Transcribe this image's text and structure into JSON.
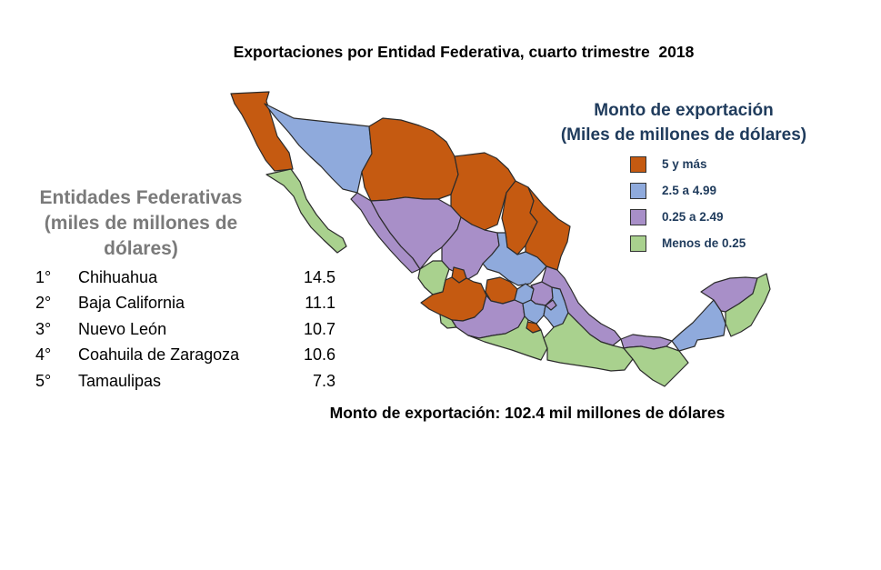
{
  "title": "Exportaciones por Entidad Federativa, cuarto trimestre  2018",
  "legend": {
    "title_line1": "Monto de exportación",
    "title_line2": "(Miles de millones de dólares)",
    "items": [
      {
        "label": "5 y más",
        "color": "#c55a11"
      },
      {
        "label": "2.5 a 4.99",
        "color": "#8faadc"
      },
      {
        "label": "0.25 a 2.49",
        "color": "#a88fc8"
      },
      {
        "label": "Menos de 0.25",
        "color": "#a9d18e"
      }
    ]
  },
  "ranking": {
    "title_line1": "Entidades Federativas",
    "title_line2": "(miles de millones de",
    "title_line3": "dólares)",
    "rows": [
      {
        "rank": "1°",
        "name": "Chihuahua",
        "value": "14.5"
      },
      {
        "rank": "2°",
        "name": "Baja California",
        "value": "11.1"
      },
      {
        "rank": "3°",
        "name": "Nuevo León",
        "value": "10.7"
      },
      {
        "rank": "4°",
        "name": "Coahuila de Zaragoza",
        "value": "10.6"
      },
      {
        "rank": "5°",
        "name": "Tamaulipas",
        "value": "7.3"
      }
    ]
  },
  "total_label": "Monto de exportación: 102.4 mil millones de dólares",
  "map_regions": [
    {
      "id": "baja-california",
      "color": "#c55a11"
    },
    {
      "id": "baja-california-sur",
      "color": "#a9d18e"
    },
    {
      "id": "sonora",
      "color": "#8faadc"
    },
    {
      "id": "chihuahua",
      "color": "#c55a11"
    },
    {
      "id": "coahuila",
      "color": "#c55a11"
    },
    {
      "id": "nuevo-leon",
      "color": "#c55a11"
    },
    {
      "id": "tamaulipas",
      "color": "#c55a11"
    },
    {
      "id": "sinaloa",
      "color": "#a88fc8"
    },
    {
      "id": "durango",
      "color": "#a88fc8"
    },
    {
      "id": "zacatecas",
      "color": "#a88fc8"
    },
    {
      "id": "san-luis-potosi",
      "color": "#8faadc"
    },
    {
      "id": "nayarit",
      "color": "#a9d18e"
    },
    {
      "id": "aguascalientes",
      "color": "#c55a11"
    },
    {
      "id": "jalisco",
      "color": "#c55a11"
    },
    {
      "id": "guanajuato",
      "color": "#c55a11"
    },
    {
      "id": "queretaro",
      "color": "#8faadc"
    },
    {
      "id": "hidalgo",
      "color": "#a88fc8"
    },
    {
      "id": "colima",
      "color": "#a9d18e"
    },
    {
      "id": "michoacan",
      "color": "#a88fc8"
    },
    {
      "id": "estado-de-mexico",
      "color": "#8faadc"
    },
    {
      "id": "puebla",
      "color": "#8faadc"
    },
    {
      "id": "tlaxcala",
      "color": "#a88fc8"
    },
    {
      "id": "morelos",
      "color": "#c55a11"
    },
    {
      "id": "veracruz",
      "color": "#a88fc8"
    },
    {
      "id": "guerrero",
      "color": "#a9d18e"
    },
    {
      "id": "oaxaca",
      "color": "#a9d18e"
    },
    {
      "id": "tabasco",
      "color": "#a88fc8"
    },
    {
      "id": "chiapas",
      "color": "#a9d18e"
    },
    {
      "id": "campeche",
      "color": "#8faadc"
    },
    {
      "id": "yucatan",
      "color": "#a88fc8"
    },
    {
      "id": "quintana-roo",
      "color": "#a9d18e"
    }
  ]
}
